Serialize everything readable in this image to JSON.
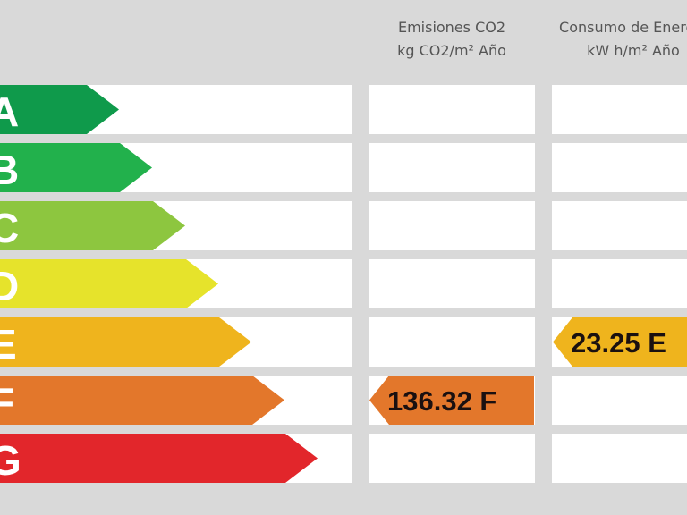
{
  "headers": {
    "co2": {
      "line1": "Emisiones CO2",
      "line2": "kg CO2/m² Año"
    },
    "energy": {
      "line1": "Consumo de Energía",
      "line2": "kW h/m² Año"
    }
  },
  "ratings": [
    {
      "letter": "A",
      "color": "#0f9a4b"
    },
    {
      "letter": "B",
      "color": "#22b14c"
    },
    {
      "letter": "C",
      "color": "#8dc63f"
    },
    {
      "letter": "D",
      "color": "#e6e32b"
    },
    {
      "letter": "E",
      "color": "#efb41d"
    },
    {
      "letter": "F",
      "color": "#e3772b"
    },
    {
      "letter": "G",
      "color": "#e2262b"
    }
  ],
  "co2_indicator": {
    "value": "136.32",
    "rating": "F",
    "text": "136.32 F",
    "color": "#e3772b"
  },
  "energy_indicator": {
    "value": "23.25",
    "rating": "E",
    "text": "23.25 E",
    "color": "#efb41d"
  }
}
